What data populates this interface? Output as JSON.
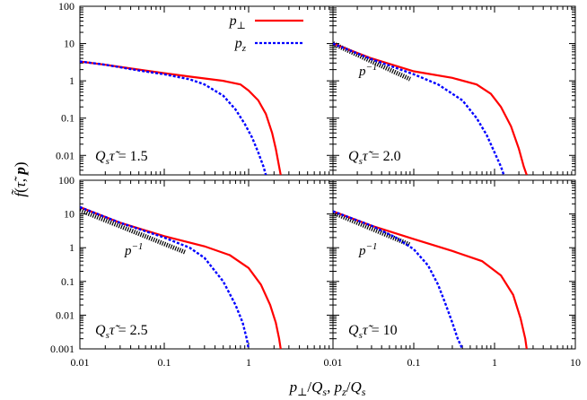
{
  "chart_data": {
    "type": "line",
    "xlabel": "p⊥/Qs,  pz/Qs",
    "ylabel": "f̃(τ̃, p)",
    "xscale": "log",
    "yscale": "log",
    "grid": false,
    "legend": {
      "placement": "top-right of first panel",
      "entries": [
        {
          "label": "p⊥",
          "color": "#ff0000",
          "style": "solid"
        },
        {
          "label": "pz",
          "color": "#0000ff",
          "style": "dashed"
        }
      ]
    },
    "x_tick_labels": [
      "0.01",
      "0.1",
      "1",
      "10"
    ],
    "y_tick_labels_top": [
      "100",
      "10",
      "1",
      "0.1",
      "0.01"
    ],
    "y_tick_labels_bottom": [
      "100",
      "10",
      "1",
      "0.1",
      "0.01",
      "0.001"
    ],
    "panels": [
      {
        "annotation": "Qsτ̃ = 1.5",
        "xlim": [
          0.01,
          10
        ],
        "ylim": [
          0.003,
          100
        ],
        "series": [
          {
            "name": "p⊥",
            "x": [
              0.01,
              0.02,
              0.05,
              0.1,
              0.2,
              0.5,
              0.8,
              1.0,
              1.3,
              1.6,
              1.9,
              2.1,
              2.3,
              2.4
            ],
            "y": [
              3.3,
              2.7,
              2.0,
              1.6,
              1.3,
              1.0,
              0.8,
              0.55,
              0.3,
              0.13,
              0.04,
              0.015,
              0.005,
              0.003
            ]
          },
          {
            "name": "pz",
            "x": [
              0.01,
              0.02,
              0.05,
              0.1,
              0.2,
              0.3,
              0.5,
              0.7,
              0.9,
              1.1,
              1.3,
              1.5,
              1.6
            ],
            "y": [
              3.3,
              2.7,
              1.9,
              1.5,
              1.1,
              0.8,
              0.4,
              0.17,
              0.07,
              0.03,
              0.012,
              0.005,
              0.003
            ]
          }
        ]
      },
      {
        "annotation": "Qsτ̃ = 2.0",
        "guide_label": "p^−1",
        "xlim": [
          0.01,
          10
        ],
        "ylim": [
          0.003,
          100
        ],
        "guide": {
          "x": [
            0.01,
            0.09
          ],
          "y": [
            10,
            1.111
          ]
        },
        "series": [
          {
            "name": "p⊥",
            "x": [
              0.01,
              0.03,
              0.1,
              0.3,
              0.6,
              0.9,
              1.2,
              1.6,
              2.0,
              2.3,
              2.5
            ],
            "y": [
              10,
              4.0,
              1.8,
              1.2,
              0.8,
              0.45,
              0.2,
              0.06,
              0.015,
              0.005,
              0.003
            ]
          },
          {
            "name": "pz",
            "x": [
              0.01,
              0.03,
              0.1,
              0.2,
              0.4,
              0.6,
              0.8,
              1.0,
              1.2,
              1.3
            ],
            "y": [
              10,
              3.8,
              1.5,
              0.8,
              0.3,
              0.1,
              0.035,
              0.012,
              0.005,
              0.003
            ]
          }
        ]
      },
      {
        "annotation": "Qsτ̃ = 2.5",
        "guide_label": "p^−1",
        "xlim": [
          0.01,
          10
        ],
        "ylim": [
          0.001,
          100
        ],
        "guide": {
          "x": [
            0.01,
            0.18
          ],
          "y": [
            13,
            0.722
          ]
        },
        "series": [
          {
            "name": "p⊥",
            "x": [
              0.01,
              0.03,
              0.1,
              0.3,
              0.6,
              1.0,
              1.4,
              1.8,
              2.1,
              2.3,
              2.4
            ],
            "y": [
              16,
              5.5,
              2.2,
              1.1,
              0.6,
              0.25,
              0.08,
              0.02,
              0.006,
              0.002,
              0.001
            ]
          },
          {
            "name": "pz",
            "x": [
              0.01,
              0.03,
              0.1,
              0.2,
              0.3,
              0.5,
              0.7,
              0.85,
              0.95,
              1.0
            ],
            "y": [
              16,
              5.5,
              2.0,
              1.0,
              0.5,
              0.1,
              0.02,
              0.006,
              0.002,
              0.001
            ]
          }
        ]
      },
      {
        "annotation": "Qsτ̃ = 10",
        "guide_label": "p^−1",
        "xlim": [
          0.01,
          10
        ],
        "ylim": [
          0.001,
          100
        ],
        "guide": {
          "x": [
            0.01,
            0.09
          ],
          "y": [
            11,
            1.222
          ]
        },
        "series": [
          {
            "name": "p⊥",
            "x": [
              0.01,
              0.03,
              0.1,
              0.3,
              0.7,
              1.2,
              1.7,
              2.1,
              2.4,
              2.5
            ],
            "y": [
              12,
              4.5,
              1.8,
              0.8,
              0.4,
              0.15,
              0.04,
              0.008,
              0.002,
              0.001
            ]
          },
          {
            "name": "pz",
            "x": [
              0.01,
              0.03,
              0.06,
              0.1,
              0.15,
              0.2,
              0.25,
              0.3,
              0.35,
              0.4
            ],
            "y": [
              12,
              4.5,
              2.0,
              0.9,
              0.3,
              0.08,
              0.02,
              0.006,
              0.002,
              0.001
            ]
          }
        ]
      }
    ]
  }
}
